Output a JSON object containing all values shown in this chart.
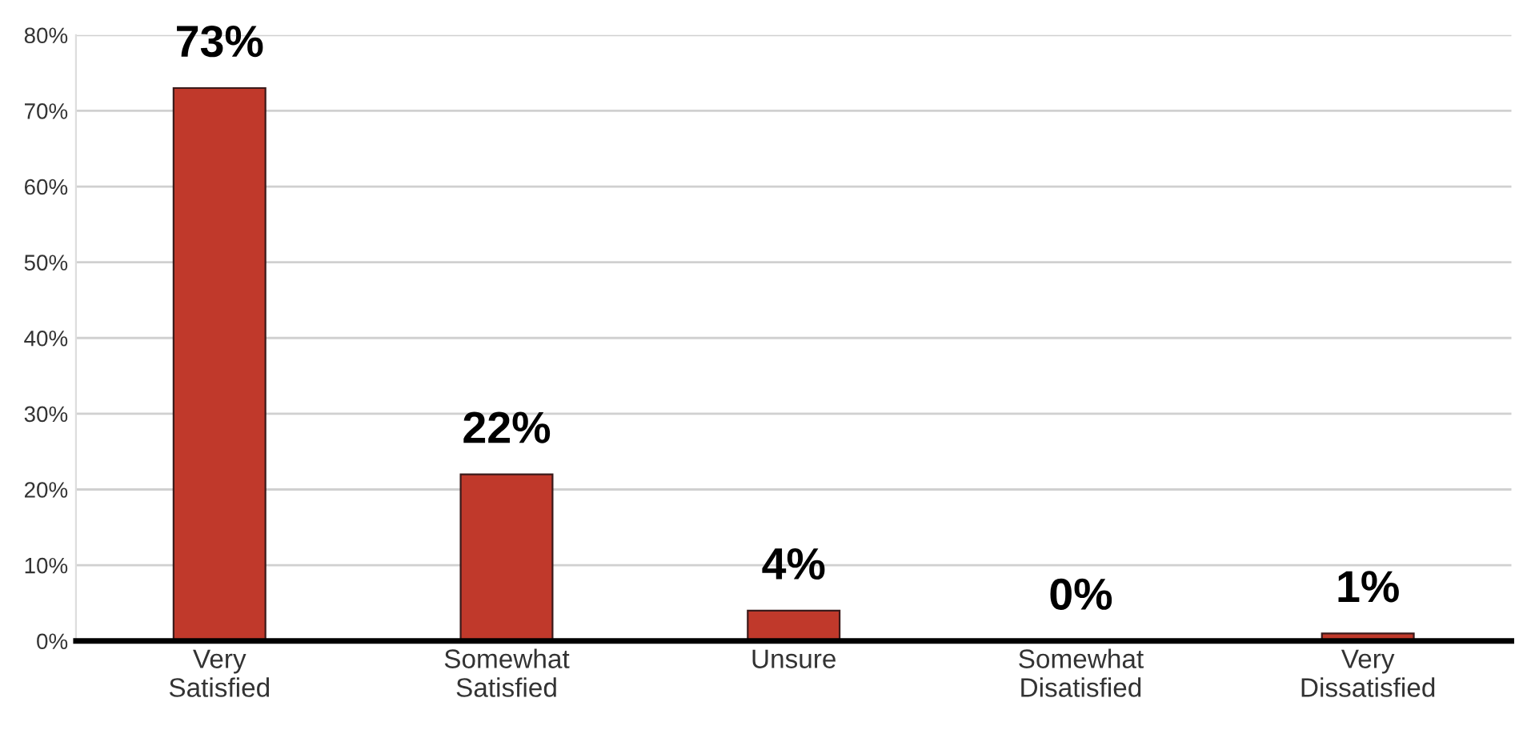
{
  "chart_data": {
    "type": "bar",
    "categories": [
      "Very\nSatisfied",
      "Somewhat\nSatisfied",
      "Unsure",
      "Somewhat\nDisatisfied",
      "Very\nDissatisfied"
    ],
    "values": [
      73,
      22,
      4,
      0,
      1
    ],
    "value_labels": [
      "73%",
      "22%",
      "4%",
      "0%",
      "1%"
    ],
    "color": "#c0392b",
    "ylim": [
      0,
      80
    ],
    "yticks": [
      {
        "value": 0,
        "label": "0%"
      },
      {
        "value": 10,
        "label": "10%"
      },
      {
        "value": 20,
        "label": "20%"
      },
      {
        "value": 30,
        "label": "30%"
      },
      {
        "value": 40,
        "label": "40%"
      },
      {
        "value": 50,
        "label": "50%"
      },
      {
        "value": 60,
        "label": "60%"
      },
      {
        "value": 70,
        "label": "70%"
      },
      {
        "value": 80,
        "label": "80%"
      }
    ],
    "grid": "y",
    "legend": false
  }
}
